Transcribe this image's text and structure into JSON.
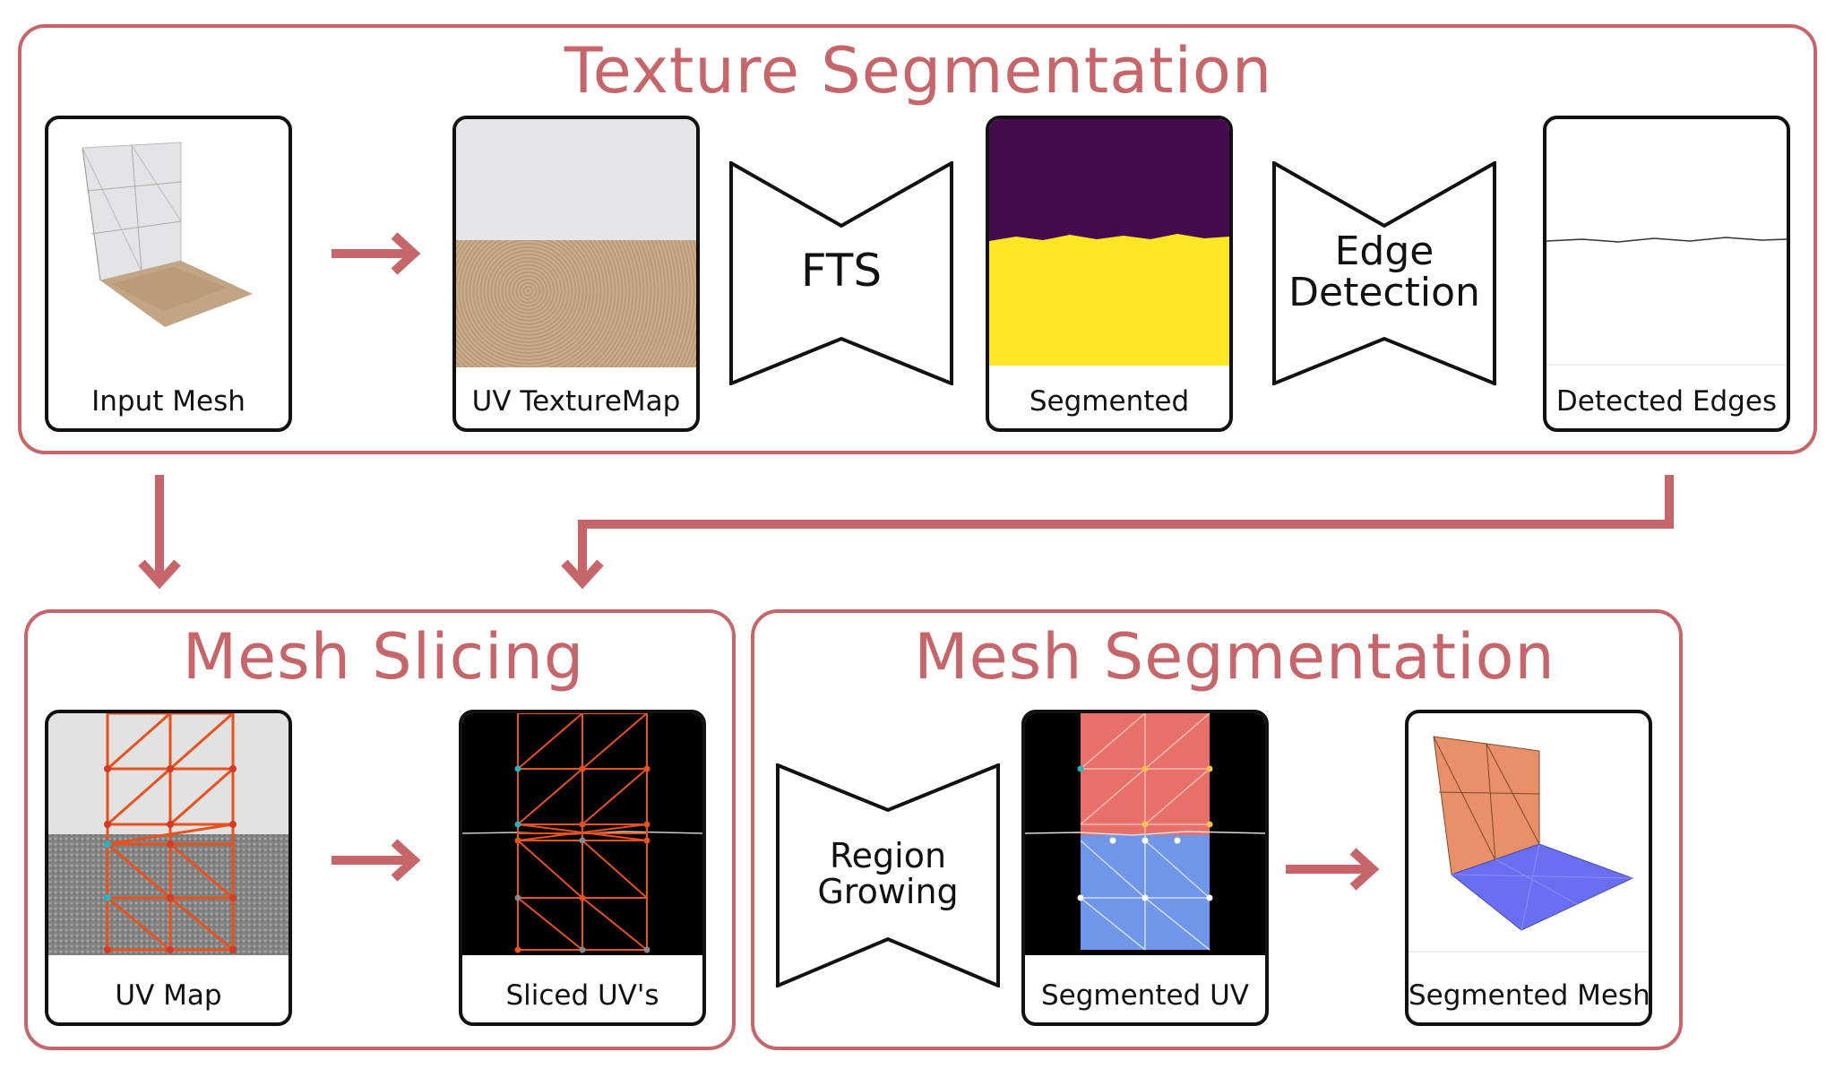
{
  "panels": {
    "texture": {
      "title": "Texture Segmentation"
    },
    "slicing": {
      "title": "Mesh Slicing"
    },
    "meshseg": {
      "title": "Mesh Segmentation"
    }
  },
  "cards": {
    "input_mesh": "Input Mesh",
    "uv_texturemap": "UV TextureMap",
    "segmented": "Segmented",
    "detected_edges": "Detected Edges",
    "uv_map": "UV Map",
    "sliced_uvs": "Sliced UV's",
    "segmented_uv": "Segmented UV",
    "segmented_mesh": "Segmented Mesh"
  },
  "networks": {
    "fts": "FTS",
    "edge_line1": "Edge",
    "edge_line2": "Detection",
    "region_line1": "Region",
    "region_line2": "Growing"
  },
  "colors": {
    "accent": "#c7666a",
    "segment_top": "#460a4f",
    "segment_bottom": "#fde725",
    "wall_region": "#e8706a",
    "floor_region": "#6f96e8",
    "uv_edges": "#e8521e",
    "mesh_wall": "#e99068",
    "mesh_floor": "#6a6ef0"
  }
}
